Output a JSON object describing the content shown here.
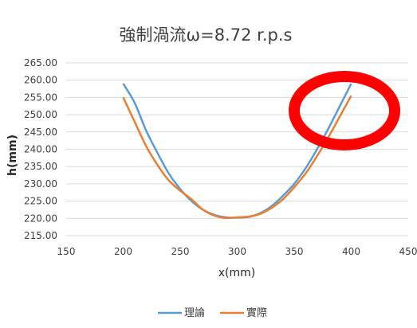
{
  "chart_data": {
    "type": "line",
    "title": "強制渦流ω=8.72 r.p.s",
    "xlabel": "x(mm)",
    "ylabel": "h(mm)",
    "xlim": [
      150,
      450
    ],
    "ylim": [
      215,
      265
    ],
    "x_ticks": [
      150,
      200,
      250,
      300,
      350,
      400,
      450
    ],
    "y_ticks": [
      215,
      220,
      225,
      230,
      235,
      240,
      245,
      250,
      255,
      260,
      265
    ],
    "y_tick_labels": [
      "215.00",
      "220.00",
      "225.00",
      "230.00",
      "235.00",
      "240.00",
      "245.00",
      "250.00",
      "255.00",
      "260.00",
      "265.00"
    ],
    "grid": "horizontal",
    "legend_position": "bottom",
    "series": [
      {
        "name": "理論",
        "color": "#5B9BD5",
        "x": [
          200,
          210,
          220,
          230,
          240,
          250,
          260,
          270,
          280,
          290,
          300,
          310,
          320,
          330,
          340,
          350,
          360,
          370,
          380,
          390,
          400
        ],
        "values": [
          259.0,
          253.5,
          245.5,
          239.0,
          233.0,
          228.5,
          225.0,
          222.5,
          221.0,
          220.3,
          220.2,
          220.4,
          221.5,
          223.5,
          226.5,
          230.0,
          234.5,
          240.0,
          246.0,
          252.5,
          259.0
        ]
      },
      {
        "name": "實際",
        "color": "#ED7D31",
        "x": [
          200,
          210,
          220,
          230,
          240,
          250,
          260,
          270,
          280,
          290,
          300,
          310,
          320,
          330,
          340,
          350,
          360,
          370,
          380,
          390,
          400
        ],
        "values": [
          255.0,
          248.0,
          241.0,
          235.5,
          231.0,
          228.0,
          225.5,
          222.5,
          220.8,
          220.1,
          220.3,
          220.5,
          221.3,
          223.0,
          225.5,
          229.0,
          233.0,
          238.0,
          243.5,
          249.5,
          255.5
        ]
      }
    ],
    "annotation": {
      "type": "circle",
      "color": "#FF0000",
      "description_hidden": true
    }
  }
}
